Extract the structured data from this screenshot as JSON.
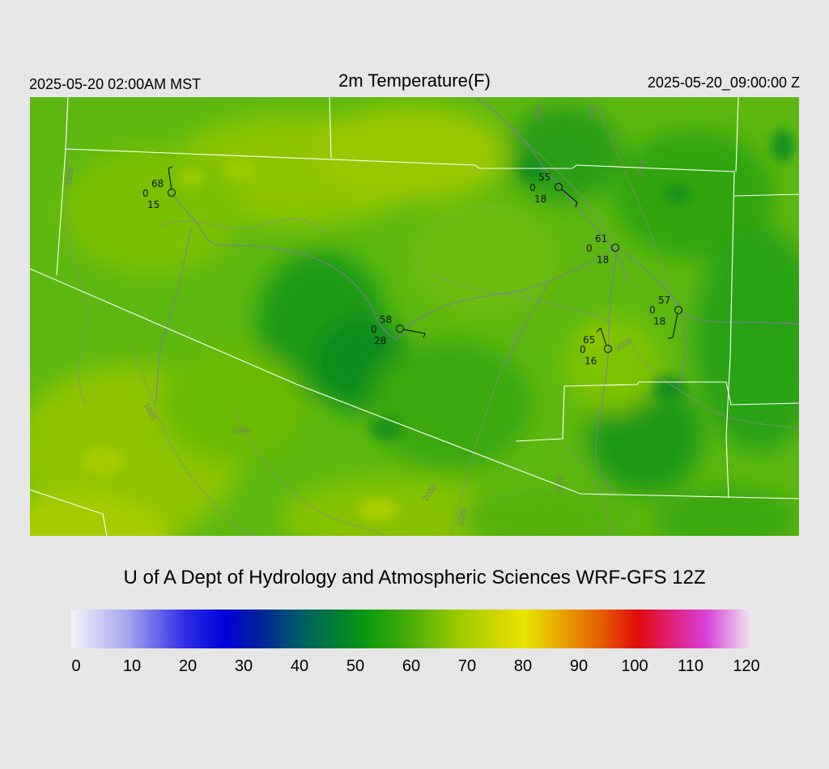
{
  "header": {
    "local_time": "2025-05-20 02:00AM MST",
    "title": "2m Temperature(F)",
    "utc_time": "2025-05-20_09:00:00 Z"
  },
  "credit": "U of A Dept of Hydrology and Atmospheric Sciences WRF-GFS 12Z",
  "colorbar": {
    "min": 0,
    "max": 120,
    "ticks": [
      "0",
      "10",
      "20",
      "30",
      "40",
      "50",
      "60",
      "70",
      "80",
      "90",
      "100",
      "110",
      "120"
    ],
    "stops": [
      {
        "value": 0,
        "color": "#f3f3f8"
      },
      {
        "value": 10,
        "color": "#a4a4ee"
      },
      {
        "value": 20,
        "color": "#2f2fe6"
      },
      {
        "value": 27,
        "color": "#0000dc"
      },
      {
        "value": 33,
        "color": "#00209a"
      },
      {
        "value": 40,
        "color": "#005a6a"
      },
      {
        "value": 46,
        "color": "#007a3a"
      },
      {
        "value": 52,
        "color": "#0a9a10"
      },
      {
        "value": 60,
        "color": "#4aae08"
      },
      {
        "value": 68,
        "color": "#9aca00"
      },
      {
        "value": 76,
        "color": "#d4d800"
      },
      {
        "value": 80,
        "color": "#e6e600"
      },
      {
        "value": 86,
        "color": "#e8a800"
      },
      {
        "value": 93,
        "color": "#e46400"
      },
      {
        "value": 100,
        "color": "#e00a0a"
      },
      {
        "value": 106,
        "color": "#e0207a"
      },
      {
        "value": 112,
        "color": "#d840d8"
      },
      {
        "value": 120,
        "color": "#f0e6f0"
      }
    ]
  },
  "stations": [
    {
      "temp": "68",
      "mid": "0",
      "bottom": "15"
    },
    {
      "temp": "55",
      "mid": "0",
      "bottom": "18"
    },
    {
      "temp": "61",
      "mid": "0",
      "bottom": "18"
    },
    {
      "temp": "57",
      "mid": "0",
      "bottom": "18"
    },
    {
      "temp": "58",
      "mid": "0",
      "bottom": "28"
    },
    {
      "temp": "65",
      "mid": "0",
      "bottom": "16"
    }
  ],
  "contour_labels": [
    "1000",
    "1000",
    "2000",
    "2000",
    "2000",
    "2000",
    "2000",
    "2000",
    "2000",
    "2000"
  ]
}
